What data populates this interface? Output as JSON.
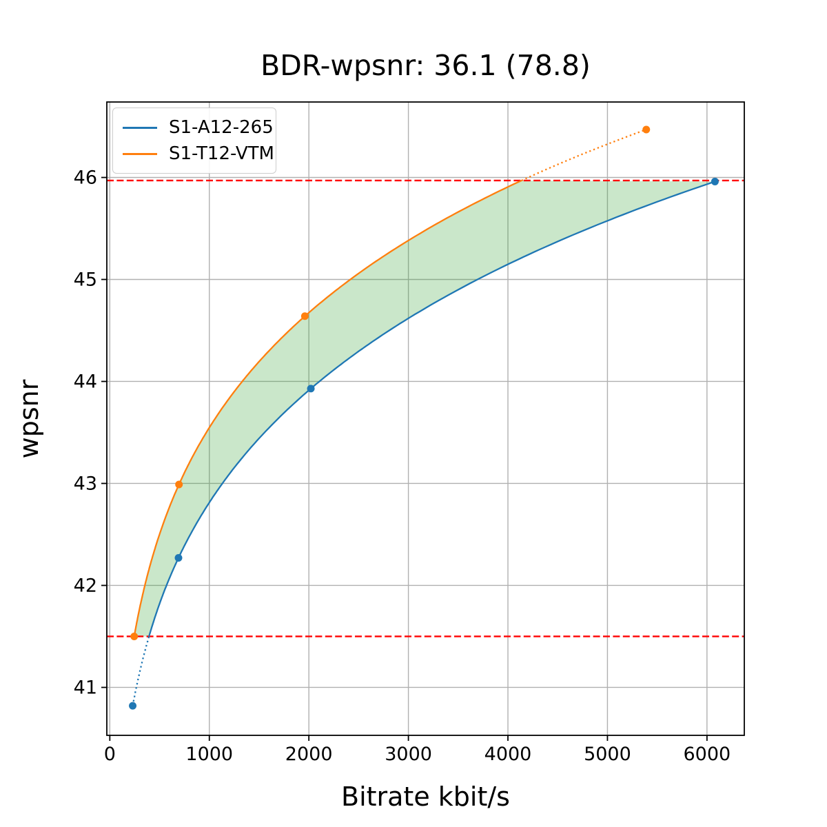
{
  "chart_data": {
    "type": "line",
    "title": "BDR-wpsnr: 36.1 (78.8)",
    "xlabel": "Bitrate kbit/s",
    "ylabel": "wpsnr",
    "xlim": [
      -30,
      6375
    ],
    "ylim": [
      40.53,
      46.74
    ],
    "xticks": [
      0,
      1000,
      2000,
      3000,
      4000,
      5000,
      6000
    ],
    "yticks": [
      41,
      42,
      43,
      44,
      45,
      46
    ],
    "grid": true,
    "grid_color": "#b0b0b0",
    "background": "#ffffff",
    "legend": {
      "position": "upper-left"
    },
    "series": [
      {
        "name": "S1-A12-265",
        "color": "#1f77b4",
        "marker": "circle",
        "points": [
          [
            230,
            40.82
          ],
          [
            690,
            42.27
          ],
          [
            2020,
            43.93
          ],
          [
            6080,
            45.96
          ]
        ]
      },
      {
        "name": "S1-T12-VTM",
        "color": "#ff7f0e",
        "marker": "circle",
        "points": [
          [
            245,
            41.5
          ],
          [
            695,
            42.99
          ],
          [
            1960,
            44.64
          ],
          [
            5390,
            46.47
          ]
        ]
      }
    ],
    "hlines": [
      {
        "y": 45.97,
        "color": "#ff0000",
        "style": "dashed"
      },
      {
        "y": 41.5,
        "color": "#ff0000",
        "style": "dashed"
      }
    ],
    "overlap_region": {
      "fill_color": "#2ca02c",
      "fill_alpha": 0.25,
      "y_range": [
        41.5,
        45.97
      ]
    },
    "curve_style": {
      "solid_within_overlap": true,
      "dotted_outside_overlap": true,
      "interpolation": "pchip-log-x"
    }
  }
}
